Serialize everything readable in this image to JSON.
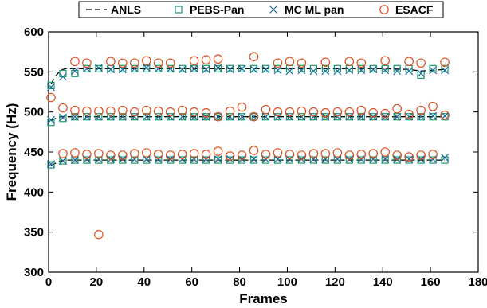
{
  "chart_data": {
    "type": "scatter",
    "xlabel": "Frames",
    "ylabel": "Frequency (Hz)",
    "xlim": [
      0,
      180
    ],
    "ylim": [
      300,
      600
    ],
    "xticks": [
      0,
      20,
      40,
      60,
      80,
      100,
      120,
      140,
      160,
      180
    ],
    "yticks": [
      300,
      350,
      400,
      450,
      500,
      550,
      600
    ],
    "grid": false,
    "legend_position": "top",
    "series": [
      {
        "name": "ANLS",
        "marker": "line",
        "style": "dashed",
        "color": "#000000",
        "tracks": [
          {
            "x": [
              1,
              3,
              5,
              7,
              9,
              11,
              13,
              16,
              21,
              31,
              41,
              51,
              61,
              71,
              81,
              91,
              101,
              111,
              121,
              131,
              141,
              151,
              156,
              161,
              166
            ],
            "y": [
              535,
              545,
              552,
              554,
              554,
              554,
              554,
              554,
              554,
              554,
              554,
              554,
              554,
              554,
              554,
              554,
              554,
              554,
              554,
              554,
              554,
              553,
              551,
              552,
              553
            ]
          },
          {
            "x": [
              1,
              3,
              5,
              7,
              11,
              21,
              31,
              41,
              51,
              61,
              71,
              81,
              91,
              101,
              111,
              121,
              131,
              141,
              151,
              161,
              166
            ],
            "y": [
              489,
              492,
              494,
              494,
              494,
              494,
              494,
              494,
              494,
              494,
              494,
              494,
              494,
              494,
              494,
              494,
              494,
              494,
              494,
              494,
              494
            ]
          },
          {
            "x": [
              1,
              3,
              5,
              7,
              11,
              21,
              31,
              41,
              51,
              61,
              71,
              81,
              91,
              101,
              111,
              121,
              131,
              141,
              151,
              161,
              166
            ],
            "y": [
              433,
              436,
              439,
              440,
              440,
              440,
              440,
              440,
              440,
              440,
              440,
              440,
              440,
              440,
              440,
              440,
              440,
              440,
              440,
              440,
              440
            ]
          }
        ]
      },
      {
        "name": "PEBS-Pan",
        "marker": "square",
        "color": "#1a9a6a",
        "tracks": [
          {
            "x": [
              1,
              6,
              11,
              16,
              21,
              26,
              31,
              36,
              41,
              46,
              51,
              56,
              61,
              66,
              71,
              76,
              81,
              86,
              91,
              96,
              101,
              106,
              111,
              116,
              121,
              126,
              131,
              136,
              141,
              146,
              151,
              156,
              161,
              166
            ],
            "y": [
              533,
              548,
              548,
              554,
              554,
              554,
              554,
              554,
              554,
              554,
              554,
              554,
              554,
              554,
              554,
              554,
              554,
              554,
              554,
              554,
              554,
              554,
              554,
              554,
              554,
              554,
              554,
              554,
              554,
              554,
              554,
              546,
              554,
              554
            ]
          },
          {
            "x": [
              1,
              6,
              11,
              16,
              21,
              26,
              31,
              36,
              41,
              46,
              51,
              56,
              61,
              66,
              71,
              76,
              81,
              86,
              91,
              96,
              101,
              106,
              111,
              116,
              121,
              126,
              131,
              136,
              141,
              146,
              151,
              156,
              161,
              166
            ],
            "y": [
              487,
              492,
              494,
              494,
              494,
              494,
              494,
              494,
              494,
              494,
              494,
              494,
              494,
              494,
              494,
              494,
              494,
              494,
              494,
              494,
              494,
              494,
              494,
              494,
              494,
              494,
              494,
              494,
              494,
              494,
              494,
              494,
              494,
              494
            ]
          },
          {
            "x": [
              1,
              6,
              11,
              16,
              21,
              26,
              31,
              36,
              41,
              46,
              51,
              56,
              61,
              66,
              71,
              76,
              81,
              86,
              91,
              96,
              101,
              106,
              111,
              116,
              121,
              126,
              131,
              136,
              141,
              146,
              151,
              156,
              161,
              166
            ],
            "y": [
              434,
              439,
              440,
              440,
              440,
              440,
              440,
              440,
              440,
              440,
              440,
              440,
              440,
              440,
              440,
              440,
              440,
              440,
              440,
              440,
              440,
              440,
              440,
              440,
              440,
              440,
              440,
              440,
              440,
              440,
              440,
              440,
              440,
              440
            ]
          }
        ]
      },
      {
        "name": "MC ML pan",
        "marker": "x",
        "color": "#1a6a9a",
        "tracks": [
          {
            "x": [
              1,
              6,
              11,
              16,
              21,
              26,
              31,
              36,
              41,
              46,
              51,
              56,
              61,
              66,
              71,
              76,
              81,
              86,
              91,
              96,
              101,
              106,
              111,
              116,
              121,
              126,
              131,
              136,
              141,
              146,
              151,
              156,
              161,
              166
            ],
            "y": [
              531,
              544,
              551,
              554,
              555,
              553,
              553,
              554,
              555,
              554,
              554,
              553,
              554,
              553,
              555,
              553,
              554,
              553,
              553,
              552,
              551,
              552,
              551,
              551,
              551,
              552,
              552,
              553,
              552,
              551,
              551,
              548,
              552,
              552
            ]
          },
          {
            "x": [
              1,
              6,
              11,
              16,
              21,
              26,
              31,
              36,
              41,
              46,
              51,
              56,
              61,
              66,
              71,
              76,
              81,
              86,
              91,
              96,
              101,
              106,
              111,
              116,
              121,
              126,
              131,
              136,
              141,
              146,
              151,
              156,
              161,
              166
            ],
            "y": [
              490,
              493,
              494,
              494,
              494,
              494,
              494,
              494,
              494,
              494,
              494,
              494,
              494,
              494,
              494,
              494,
              494,
              494,
              494,
              494,
              494,
              494,
              494,
              494,
              494,
              494,
              494,
              494,
              494,
              494,
              494,
              494,
              495,
              495
            ]
          },
          {
            "x": [
              1,
              6,
              11,
              16,
              21,
              26,
              31,
              36,
              41,
              46,
              51,
              56,
              61,
              66,
              71,
              76,
              81,
              86,
              91,
              96,
              101,
              106,
              111,
              116,
              121,
              126,
              131,
              136,
              141,
              146,
              151,
              156,
              161,
              166
            ],
            "y": [
              435,
              439,
              440,
              441,
              441,
              441,
              441,
              441,
              441,
              441,
              441,
              441,
              441,
              441,
              441,
              441,
              441,
              441,
              441,
              441,
              441,
              441,
              441,
              441,
              441,
              441,
              441,
              441,
              441,
              441,
              441,
              441,
              441,
              443
            ]
          }
        ]
      },
      {
        "name": "ESACF",
        "marker": "circle",
        "color": "#e0501e",
        "tracks": [
          {
            "x": [
              1,
              11,
              16,
              26,
              31,
              36,
              41,
              46,
              51,
              61,
              66,
              71,
              86,
              96,
              101,
              106,
              116,
              126,
              131,
              141,
              151,
              156,
              166
            ],
            "y": [
              518,
              563,
              561,
              563,
              561,
              561,
              564,
              561,
              561,
              564,
              565,
              566,
              569,
              561,
              563,
              561,
              562,
              563,
              561,
              564,
              563,
              561,
              562
            ]
          },
          {
            "x": [
              6,
              11,
              16,
              21,
              26,
              31,
              36,
              41,
              46,
              51,
              56,
              61,
              66,
              71,
              76,
              81,
              86,
              91,
              96,
              101,
              106,
              111,
              116,
              121,
              126,
              131,
              136,
              141,
              146,
              151,
              156,
              161,
              166
            ],
            "y": [
              505,
              502,
              501,
              501,
              501,
              502,
              500,
              502,
              501,
              500,
              502,
              500,
              499,
              494,
              501,
              506,
              494,
              503,
              500,
              500,
              501,
              500,
              499,
              500,
              500,
              502,
              499,
              498,
              504,
              497,
              502,
              507,
              496
            ]
          },
          {
            "x": [
              6,
              11,
              16,
              21,
              26,
              31,
              36,
              41,
              46,
              51,
              56,
              61,
              66,
              71,
              76,
              81,
              86,
              91,
              96,
              101,
              106,
              111,
              116,
              121,
              126,
              131,
              136,
              141,
              146,
              151,
              156,
              161
            ],
            "y": [
              448,
              449,
              447,
              448,
              446,
              446,
              448,
              449,
              447,
              446,
              447,
              448,
              447,
              451,
              445,
              446,
              452,
              447,
              449,
              447,
              446,
              448,
              448,
              449,
              446,
              447,
              448,
              450,
              446,
              444,
              446,
              447
            ]
          },
          {
            "x": [
              21
            ],
            "y": [
              347
            ]
          }
        ]
      }
    ]
  }
}
